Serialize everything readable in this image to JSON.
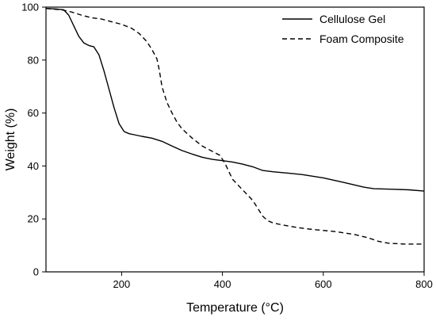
{
  "chart_data": {
    "type": "line",
    "title": "",
    "xlabel": "Temperature (°C)",
    "ylabel": "Weight (%)",
    "xlim": [
      50,
      800
    ],
    "ylim": [
      0,
      100
    ],
    "x_ticks": [
      200,
      400,
      600,
      800
    ],
    "y_ticks": [
      0,
      20,
      40,
      60,
      80,
      100
    ],
    "grid": false,
    "legend_position": "top-right",
    "series": [
      {
        "name": "Cellulose Gel",
        "style": "solid",
        "color": "#000000",
        "x": [
          50,
          70,
          85,
          95,
          105,
          115,
          125,
          135,
          145,
          155,
          165,
          175,
          185,
          195,
          205,
          215,
          225,
          240,
          260,
          280,
          300,
          320,
          340,
          360,
          380,
          400,
          420,
          440,
          460,
          480,
          500,
          530,
          560,
          600,
          640,
          680,
          700,
          740,
          770,
          800
        ],
        "y": [
          99.5,
          99.3,
          99.0,
          97.0,
          93.0,
          89.0,
          86.5,
          85.5,
          85.0,
          82.0,
          76.0,
          69.0,
          62.0,
          56.0,
          53.0,
          52.2,
          51.8,
          51.2,
          50.5,
          49.3,
          47.5,
          45.8,
          44.5,
          43.3,
          42.5,
          42.0,
          41.5,
          40.7,
          39.7,
          38.3,
          37.8,
          37.3,
          36.7,
          35.5,
          33.8,
          32.0,
          31.4,
          31.2,
          31.0,
          30.5
        ]
      },
      {
        "name": "Foam Composite",
        "style": "dashed",
        "color": "#000000",
        "x": [
          50,
          80,
          100,
          120,
          140,
          160,
          180,
          200,
          220,
          235,
          250,
          260,
          270,
          275,
          280,
          290,
          300,
          310,
          320,
          340,
          360,
          380,
          395,
          405,
          420,
          440,
          460,
          470,
          480,
          490,
          500,
          520,
          550,
          580,
          620,
          660,
          690,
          710,
          730,
          760,
          800
        ],
        "y": [
          99.5,
          99.0,
          98.2,
          97.0,
          96.0,
          95.5,
          94.5,
          93.5,
          92.0,
          90.0,
          87.0,
          84.0,
          80.5,
          76.0,
          70.0,
          64.0,
          60.0,
          56.5,
          54.0,
          50.5,
          47.5,
          45.5,
          44.0,
          41.0,
          35.0,
          31.0,
          27.0,
          24.0,
          21.0,
          19.3,
          18.5,
          17.7,
          16.7,
          16.0,
          15.3,
          14.2,
          12.8,
          11.5,
          10.8,
          10.5,
          10.5
        ]
      }
    ]
  }
}
